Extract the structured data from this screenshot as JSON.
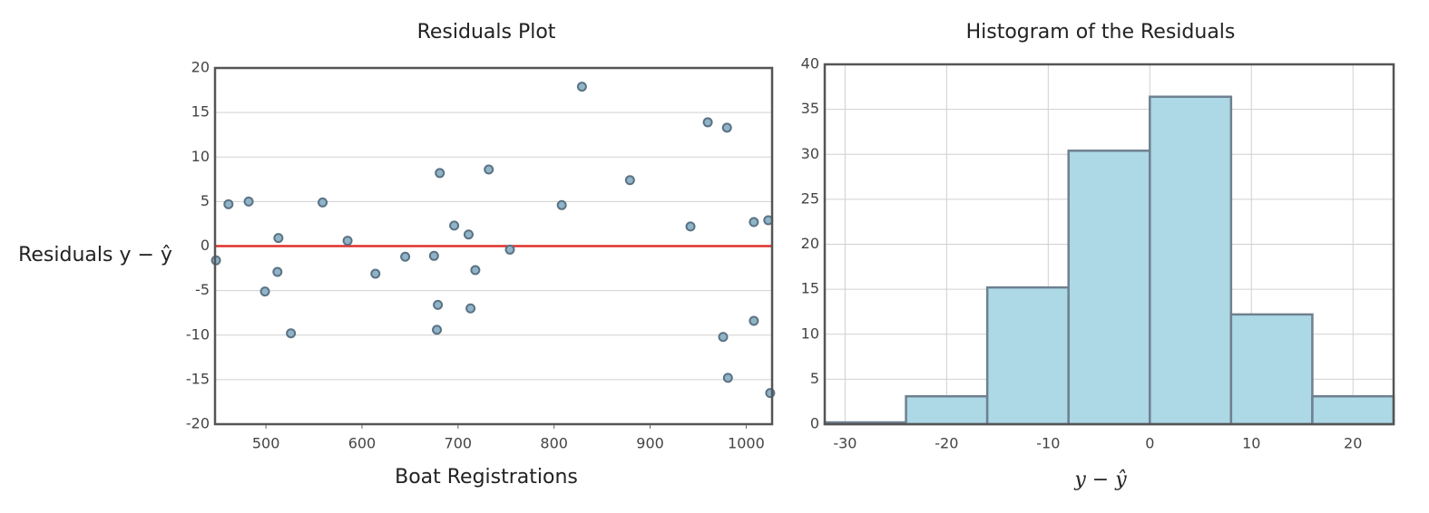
{
  "chart_data": [
    {
      "type": "scatter",
      "title": "Residuals Plot",
      "x_label": "Boat Registrations",
      "y_label": "Residuals y − ŷ",
      "x": [
        448,
        461,
        482,
        499,
        513,
        512,
        526,
        559,
        585,
        614,
        645,
        675,
        681,
        679,
        678,
        696,
        711,
        713,
        718,
        732,
        754,
        808,
        829,
        879,
        942,
        960,
        980,
        976,
        981,
        1008,
        1008,
        1023,
        1025
      ],
      "values": [
        -1.6,
        4.7,
        5.0,
        -5.1,
        0.9,
        -2.9,
        -9.8,
        4.9,
        0.6,
        -3.1,
        -1.2,
        -1.1,
        8.2,
        -6.6,
        -9.4,
        2.3,
        1.3,
        -7.0,
        -2.7,
        8.6,
        -0.4,
        4.6,
        17.9,
        7.4,
        2.2,
        13.9,
        13.3,
        -10.2,
        -14.8,
        2.7,
        -8.4,
        2.9,
        -16.5
      ],
      "color": "#8fb4c8",
      "reference_line": 0,
      "reference_color": "#e0302c",
      "xlim": [
        447,
        1027
      ],
      "ylim": [
        -20,
        20
      ],
      "xticks": [
        500,
        600,
        700,
        800,
        900,
        1000
      ],
      "yticks": [
        -20,
        -15,
        -10,
        -5,
        0,
        5,
        10,
        15,
        20
      ],
      "grid": "y"
    },
    {
      "type": "histogram",
      "title": "Histogram of the Residuals",
      "x_label": "y − ŷ",
      "bins": [
        -32,
        -24,
        -16,
        -8,
        0,
        8,
        16,
        24
      ],
      "values": [
        0.2,
        3.1,
        15.2,
        30.4,
        36.4,
        12.2,
        3.1
      ],
      "color": "#add8e6",
      "xlim": [
        -32,
        24
      ],
      "ylim": [
        0,
        40
      ],
      "xticks": [
        -30,
        -20,
        -10,
        0,
        10,
        20
      ],
      "yticks": [
        0,
        5,
        10,
        15,
        20,
        25,
        30,
        35,
        40
      ],
      "grid": "both"
    }
  ]
}
